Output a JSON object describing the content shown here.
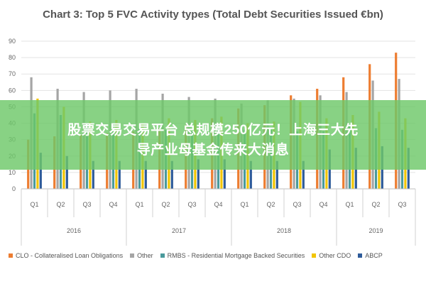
{
  "chart_data": {
    "type": "bar",
    "title": "Chart 3: Top 5 FVC Activity types (Total Debt Securities Issued €bn)",
    "categories": [
      "Q1",
      "Q2",
      "Q3",
      "Q4",
      "Q1",
      "Q2",
      "Q3",
      "Q4",
      "Q1",
      "Q2",
      "Q3",
      "Q4",
      "Q1",
      "Q2",
      "Q3"
    ],
    "year_groups": [
      {
        "label": "2016",
        "count": 4
      },
      {
        "label": "2017",
        "count": 4
      },
      {
        "label": "2018",
        "count": 4
      },
      {
        "label": "2019",
        "count": 3
      }
    ],
    "ylim": [
      0,
      90
    ],
    "yticks": [
      "0",
      "10",
      "20",
      "30",
      "40",
      "50",
      "60",
      "70",
      "80",
      "90"
    ],
    "grid": true,
    "legend_position": "bottom",
    "series": [
      {
        "name": "CLO - Collateralised Loan Obligations",
        "color": "#ed7d31",
        "values": [
          30,
          32,
          33,
          34,
          35,
          37,
          39,
          43,
          49,
          51,
          57,
          61,
          68,
          76,
          83
        ]
      },
      {
        "name": "Other",
        "color": "#a5a5a5",
        "values": [
          68,
          61,
          59,
          60,
          61,
          58,
          56,
          55,
          52,
          54,
          55,
          57,
          59,
          66,
          67
        ]
      },
      {
        "name": "RMBS - Residential Mortgage Backed Securities",
        "color": "#4a9a9c",
        "values": [
          46,
          45,
          38,
          37,
          37,
          36,
          35,
          37,
          36,
          36,
          35,
          35,
          39,
          37,
          36
        ]
      },
      {
        "name": "Other CDO",
        "color": "#f2c500",
        "values": [
          55,
          50,
          41,
          42,
          40,
          43,
          42,
          44,
          40,
          41,
          53,
          43,
          45,
          47,
          43
        ]
      },
      {
        "name": "ABCP",
        "color": "#2e5b9a",
        "values": [
          22,
          20,
          17,
          17,
          17,
          17,
          18,
          18,
          17,
          17,
          17,
          24,
          25,
          26,
          25
        ]
      }
    ]
  },
  "overlay": {
    "line1": "股票交易交易平台 总规模250亿元！上海三大先",
    "line2": "导产业母基金传来大消息"
  }
}
